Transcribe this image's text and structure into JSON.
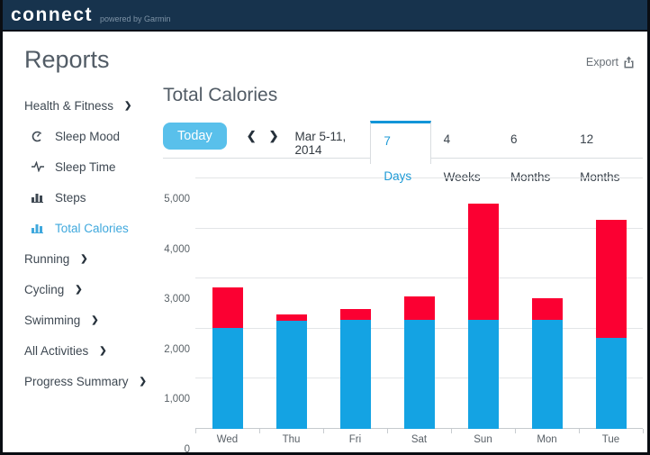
{
  "header": {
    "logo": "connect",
    "tagline": "powered by Garmin"
  },
  "page": {
    "title": "Reports",
    "export_label": "Export"
  },
  "sidebar": {
    "group": {
      "label": "Health & Fitness"
    },
    "sub_items": [
      {
        "label": "Sleep Mood",
        "icon": "sleep-mood-icon",
        "active": false
      },
      {
        "label": "Sleep Time",
        "icon": "sleep-time-icon",
        "active": false
      },
      {
        "label": "Steps",
        "icon": "steps-icon",
        "active": false
      },
      {
        "label": "Total Calories",
        "icon": "total-calories-icon",
        "active": true
      }
    ],
    "sections": [
      {
        "label": "Running"
      },
      {
        "label": "Cycling"
      },
      {
        "label": "Swimming"
      },
      {
        "label": "All Activities"
      },
      {
        "label": "Progress Summary"
      }
    ]
  },
  "main": {
    "title": "Total Calories",
    "today_button": "Today",
    "prev_arrow": "❮",
    "next_arrow": "❯",
    "chevron": "❯",
    "date_range": "Mar 5-11, 2014",
    "tabs": [
      {
        "label": "7 Days",
        "active": true
      },
      {
        "label": "4 Weeks",
        "active": false
      },
      {
        "label": "6 Months",
        "active": false
      },
      {
        "label": "12 Months",
        "active": false
      }
    ]
  },
  "colors": {
    "header_navy": "#17334d",
    "accent_blue": "#14a3e3",
    "bar_red": "#fb0032",
    "today_button": "#59c0eb",
    "tab_active": "#1295d8"
  },
  "chart_data": {
    "type": "bar",
    "stacked": true,
    "title": "Total Calories",
    "categories": [
      "Wed",
      "Thu",
      "Fri",
      "Sat",
      "Sun",
      "Mon",
      "Tue"
    ],
    "series": [
      {
        "name": "blue",
        "color": "#14a3e3",
        "values": [
          2020,
          2160,
          2170,
          2170,
          2170,
          2180,
          1810
        ]
      },
      {
        "name": "red",
        "color": "#fb0032",
        "values": [
          810,
          130,
          230,
          470,
          2320,
          420,
          2360
        ]
      }
    ],
    "totals": [
      2830,
      2290,
      2400,
      2640,
      4490,
      2600,
      4170
    ],
    "xlabel": "",
    "ylabel": "",
    "ylim": [
      0,
      5000
    ],
    "yticks": [
      "0",
      "1,000",
      "2,000",
      "3,000",
      "4,000",
      "5,000"
    ],
    "grid": true,
    "legend": false
  }
}
